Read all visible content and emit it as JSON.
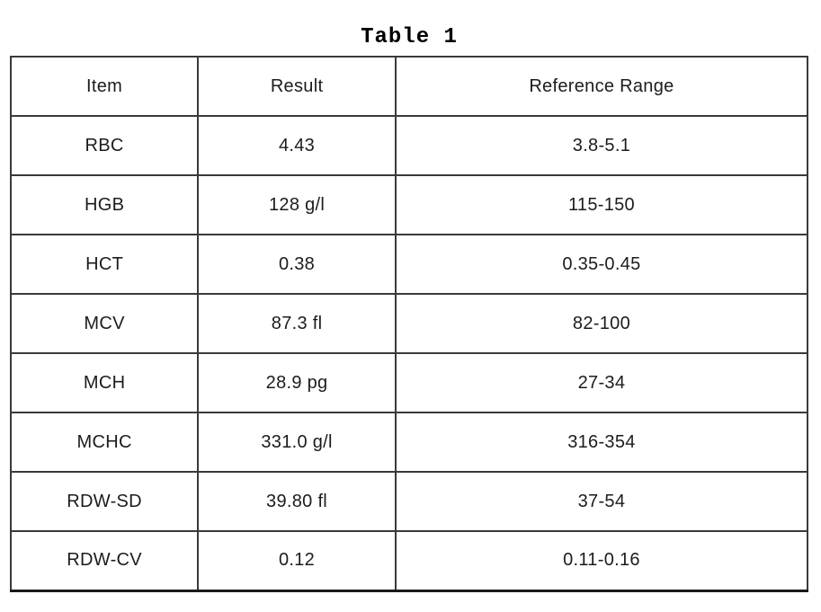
{
  "title": "Table 1",
  "table": {
    "headers": [
      "Item",
      "Result",
      "Reference Range"
    ],
    "rows": [
      [
        "RBC",
        "4.43",
        "3.8-5.1"
      ],
      [
        "HGB",
        "128 g/l",
        "115-150"
      ],
      [
        "HCT",
        "0.38",
        "0.35-0.45"
      ],
      [
        "MCV",
        "87.3 fl",
        "82-100"
      ],
      [
        "MCH",
        "28.9 pg",
        "27-34"
      ],
      [
        "MCHC",
        "331.0 g/l",
        "316-354"
      ],
      [
        "RDW-SD",
        "39.80 fl",
        "37-54"
      ],
      [
        "RDW-CV",
        "0.12",
        "0.11-0.16"
      ]
    ]
  },
  "colors": {
    "border": "#3a3a3a",
    "text": "#1c1c1c",
    "background": "#ffffff"
  },
  "chart_data": {
    "type": "table",
    "title": "Table 1",
    "columns": [
      "Item",
      "Result",
      "Reference Range"
    ],
    "rows": [
      {
        "item": "RBC",
        "result": "4.43",
        "reference_range": "3.8-5.1"
      },
      {
        "item": "HGB",
        "result": "128 g/l",
        "reference_range": "115-150"
      },
      {
        "item": "HCT",
        "result": "0.38",
        "reference_range": "0.35-0.45"
      },
      {
        "item": "MCV",
        "result": "87.3 fl",
        "reference_range": "82-100"
      },
      {
        "item": "MCH",
        "result": "28.9 pg",
        "reference_range": "27-34"
      },
      {
        "item": "MCHC",
        "result": "331.0 g/l",
        "reference_range": "316-354"
      },
      {
        "item": "RDW-SD",
        "result": "39.80 fl",
        "reference_range": "37-54"
      },
      {
        "item": "RDW-CV",
        "result": "0.12",
        "reference_range": "0.11-0.16"
      }
    ]
  }
}
